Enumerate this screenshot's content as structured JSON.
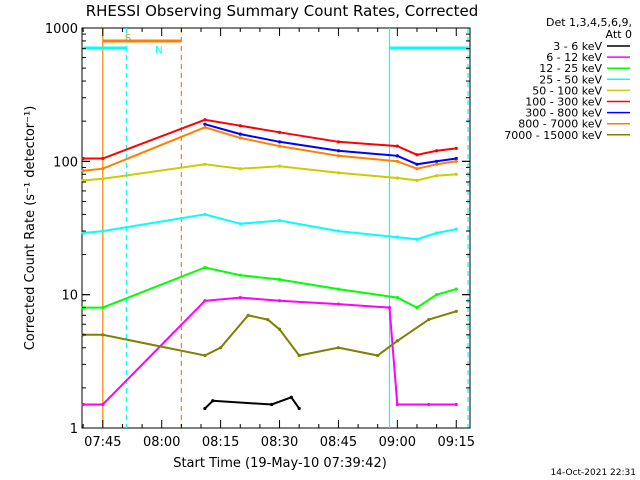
{
  "chart_data": {
    "type": "line",
    "title": "RHESSI Observing Summary Count Rates, Corrected",
    "xlabel": "Start Time (19-May-10 07:39:42)",
    "ylabel": "Corrected Count Rate (s⁻¹ detector⁻¹)",
    "x_range": [
      "07:39:42",
      "09:18:30"
    ],
    "ylim": [
      1,
      1000
    ],
    "yscale": "log",
    "x_ticks": [
      "07:45",
      "08:00",
      "08:15",
      "08:30",
      "08:45",
      "09:00",
      "09:15"
    ],
    "y_ticks": [
      "1",
      "10",
      "100",
      "1000"
    ],
    "legend_header": [
      "Det 1,3,4,5,6,9,",
      "Att 0"
    ],
    "legend_position": "right",
    "timestamp": "14-Oct-2021 22:31",
    "series": [
      {
        "name": "3 - 6 keV",
        "color": "#000000",
        "points": [
          [
            "08:11",
            1.4
          ],
          [
            "08:13",
            1.6
          ],
          [
            "08:28",
            1.5
          ],
          [
            "08:33",
            1.7
          ],
          [
            "08:35",
            1.4
          ]
        ]
      },
      {
        "name": "6 - 12 keV",
        "color": "#ff00ff",
        "points": [
          [
            "07:40",
            1.5
          ],
          [
            "07:45",
            1.5
          ],
          [
            "08:11",
            9.0
          ],
          [
            "08:20",
            9.5
          ],
          [
            "08:30",
            9.0
          ],
          [
            "08:45",
            8.5
          ],
          [
            "08:58",
            8.0
          ],
          [
            "09:00",
            1.5
          ],
          [
            "09:08",
            1.5
          ],
          [
            "09:15",
            1.5
          ]
        ]
      },
      {
        "name": "12 - 25 keV",
        "color": "#00ff00",
        "points": [
          [
            "07:40",
            8.0
          ],
          [
            "07:45",
            8.0
          ],
          [
            "08:11",
            16
          ],
          [
            "08:20",
            14
          ],
          [
            "08:30",
            13
          ],
          [
            "08:45",
            11
          ],
          [
            "09:00",
            9.5
          ],
          [
            "09:05",
            8.0
          ],
          [
            "09:10",
            10
          ],
          [
            "09:15",
            11
          ]
        ]
      },
      {
        "name": "25 - 50 keV",
        "color": "#00ffff",
        "points": [
          [
            "07:40",
            29
          ],
          [
            "07:45",
            30
          ],
          [
            "08:11",
            40
          ],
          [
            "08:20",
            34
          ],
          [
            "08:30",
            36
          ],
          [
            "08:45",
            30
          ],
          [
            "09:00",
            27
          ],
          [
            "09:05",
            26
          ],
          [
            "09:10",
            29
          ],
          [
            "09:15",
            31
          ]
        ]
      },
      {
        "name": "50 - 100 keV",
        "color": "#cccc00",
        "points": [
          [
            "07:40",
            72
          ],
          [
            "07:45",
            74
          ],
          [
            "08:11",
            95
          ],
          [
            "08:20",
            88
          ],
          [
            "08:30",
            92
          ],
          [
            "08:45",
            82
          ],
          [
            "09:00",
            75
          ],
          [
            "09:05",
            72
          ],
          [
            "09:10",
            78
          ],
          [
            "09:15",
            80
          ]
        ]
      },
      {
        "name": "100 - 300 keV",
        "color": "#ff0000",
        "points": [
          [
            "07:40",
            105
          ],
          [
            "07:45",
            105
          ],
          [
            "08:11",
            205
          ],
          [
            "08:20",
            185
          ],
          [
            "08:30",
            165
          ],
          [
            "08:45",
            140
          ],
          [
            "09:00",
            130
          ],
          [
            "09:05",
            112
          ],
          [
            "09:10",
            120
          ],
          [
            "09:15",
            125
          ]
        ]
      },
      {
        "name": "300 - 800 keV",
        "color": "#0000ff",
        "points": [
          [
            "08:11",
            190
          ],
          [
            "08:20",
            160
          ],
          [
            "08:30",
            140
          ],
          [
            "08:45",
            120
          ],
          [
            "09:00",
            110
          ],
          [
            "09:05",
            95
          ],
          [
            "09:10",
            100
          ],
          [
            "09:15",
            105
          ]
        ]
      },
      {
        "name": "800 - 7000 keV",
        "color": "#ff8000",
        "points": [
          [
            "07:40",
            85
          ],
          [
            "07:45",
            88
          ],
          [
            "08:11",
            180
          ],
          [
            "08:20",
            150
          ],
          [
            "08:30",
            130
          ],
          [
            "08:45",
            110
          ],
          [
            "09:00",
            100
          ],
          [
            "09:05",
            88
          ],
          [
            "09:10",
            95
          ],
          [
            "09:15",
            100
          ]
        ]
      },
      {
        "name": "7000 - 15000 keV",
        "color": "#808000",
        "points": [
          [
            "07:40",
            5.0
          ],
          [
            "07:45",
            5.0
          ],
          [
            "08:11",
            3.5
          ],
          [
            "08:15",
            4.0
          ],
          [
            "08:22",
            7.0
          ],
          [
            "08:27",
            6.5
          ],
          [
            "08:30",
            5.5
          ],
          [
            "08:35",
            3.5
          ],
          [
            "08:45",
            4.0
          ],
          [
            "08:55",
            3.5
          ],
          [
            "09:00",
            4.5
          ],
          [
            "09:08",
            6.5
          ],
          [
            "09:15",
            7.5
          ]
        ]
      }
    ],
    "flag_bars": [
      {
        "label": "S",
        "color": "#ff8000",
        "start": "07:45",
        "end": "08:05"
      },
      {
        "label": "N",
        "color": "#00ffff",
        "start": "07:40",
        "end": "07:51"
      },
      {
        "label": "",
        "color": "#00ffff",
        "start": "08:58",
        "end": "09:18"
      }
    ],
    "vertical_markers": [
      {
        "time": "07:45",
        "color": "#ff8000",
        "style": "solid"
      },
      {
        "time": "07:51",
        "color": "#00ffff",
        "style": "dashed"
      },
      {
        "time": "08:05",
        "color": "#ff8000",
        "style": "dashed"
      },
      {
        "time": "08:58",
        "color": "#00ffff",
        "style": "solid"
      },
      {
        "time": "09:18",
        "color": "#00ffff",
        "style": "dashed"
      }
    ]
  }
}
